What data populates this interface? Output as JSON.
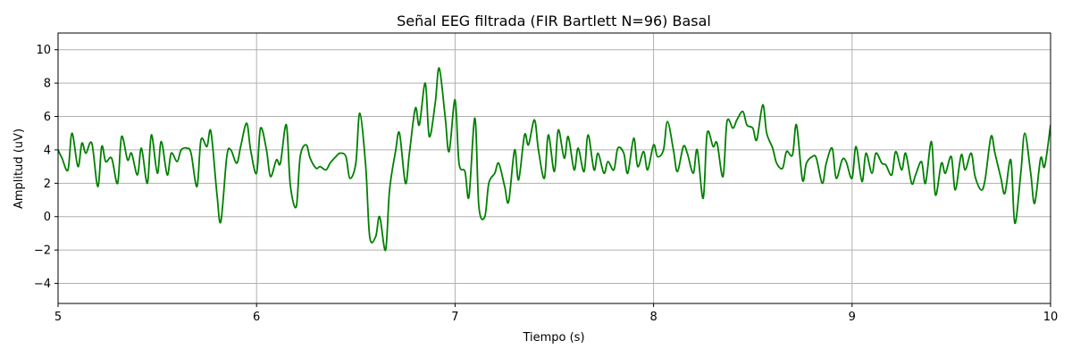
{
  "chart_data": {
    "type": "line",
    "title": "Señal EEG filtrada (FIR Bartlett N=96) Basal",
    "xlabel": "Tiempo (s)",
    "ylabel": "Amplitud (uV)",
    "xlim": [
      5,
      10
    ],
    "ylim": [
      -5.2,
      11
    ],
    "xticks": [
      5,
      6,
      7,
      8,
      9,
      10
    ],
    "yticks": [
      -4,
      -2,
      0,
      2,
      4,
      6,
      8,
      10
    ],
    "xtick_labels": [
      "5",
      "6",
      "7",
      "8",
      "9",
      "10"
    ],
    "ytick_labels": [
      "−4",
      "−2",
      "0",
      "2",
      "4",
      "6",
      "8",
      "10"
    ],
    "grid": true,
    "color": "#008000",
    "series": [
      {
        "x": [
          5.0,
          5.02,
          5.05,
          5.07,
          5.1,
          5.12,
          5.14,
          5.17,
          5.2,
          5.22,
          5.24,
          5.27,
          5.3,
          5.32,
          5.35,
          5.37,
          5.4,
          5.42,
          5.45,
          5.47,
          5.5,
          5.52,
          5.55,
          5.57,
          5.6,
          5.62,
          5.65,
          5.67,
          5.7,
          5.72,
          5.75,
          5.77,
          5.8,
          5.82,
          5.85,
          5.87,
          5.9,
          5.92,
          5.95,
          5.97,
          6.0,
          6.02,
          6.05,
          6.07,
          6.1,
          6.12,
          6.15,
          6.17,
          6.2,
          6.22,
          6.25,
          6.27,
          6.3,
          6.32,
          6.35,
          6.37,
          6.4,
          6.42,
          6.45,
          6.47,
          6.5,
          6.52,
          6.55,
          6.57,
          6.6,
          6.62,
          6.65,
          6.67,
          6.7,
          6.72,
          6.75,
          6.77,
          6.8,
          6.82,
          6.85,
          6.87,
          6.9,
          6.92,
          6.95,
          6.97,
          7.0,
          7.02,
          7.05,
          7.07,
          7.1,
          7.12,
          7.15,
          7.17,
          7.2,
          7.22,
          7.25,
          7.27,
          7.3,
          7.32,
          7.35,
          7.37,
          7.4,
          7.42,
          7.45,
          7.47,
          7.5,
          7.52,
          7.55,
          7.57,
          7.6,
          7.62,
          7.65,
          7.67,
          7.7,
          7.72,
          7.75,
          7.77,
          7.8,
          7.82,
          7.85,
          7.87,
          7.9,
          7.92,
          7.95,
          7.97,
          8.0,
          8.02,
          8.05,
          8.07,
          8.1,
          8.12,
          8.15,
          8.17,
          8.2,
          8.22,
          8.25,
          8.27,
          8.3,
          8.32,
          8.35,
          8.37,
          8.4,
          8.42,
          8.45,
          8.47,
          8.5,
          8.52,
          8.55,
          8.57,
          8.6,
          8.62,
          8.65,
          8.67,
          8.7,
          8.72,
          8.75,
          8.77,
          8.8,
          8.82,
          8.85,
          8.87,
          8.9,
          8.92,
          8.95,
          8.97,
          9.0,
          9.02,
          9.05,
          9.07,
          9.1,
          9.12,
          9.15,
          9.17,
          9.2,
          9.22,
          9.25,
          9.27,
          9.3,
          9.32,
          9.35,
          9.37,
          9.4,
          9.42,
          9.45,
          9.47,
          9.5,
          9.52,
          9.55,
          9.57,
          9.6,
          9.62,
          9.65,
          9.67,
          9.7,
          9.72,
          9.75,
          9.77,
          9.8,
          9.82,
          9.85,
          9.87,
          9.9,
          9.92,
          9.95,
          9.97,
          10.0
        ],
        "values": [
          4.0,
          3.5,
          2.8,
          5.0,
          3.0,
          4.4,
          3.8,
          4.4,
          1.8,
          4.2,
          3.3,
          3.5,
          2.0,
          4.8,
          3.4,
          3.8,
          2.5,
          4.1,
          2.0,
          4.9,
          2.6,
          4.5,
          2.5,
          3.8,
          3.3,
          4.0,
          4.1,
          3.8,
          1.8,
          4.6,
          4.2,
          5.1,
          1.4,
          -0.3,
          3.6,
          4.0,
          3.2,
          4.2,
          5.6,
          4.0,
          2.6,
          5.3,
          4.0,
          2.4,
          3.4,
          3.2,
          5.5,
          1.9,
          0.6,
          3.6,
          4.3,
          3.5,
          2.9,
          3.0,
          2.8,
          3.2,
          3.6,
          3.8,
          3.6,
          2.3,
          3.2,
          6.2,
          3.0,
          -1.2,
          -1.2,
          0.0,
          -2.0,
          1.6,
          3.9,
          5.0,
          2.0,
          3.8,
          6.5,
          5.5,
          8.0,
          4.8,
          6.8,
          8.9,
          6.0,
          3.9,
          7.0,
          3.2,
          2.7,
          1.2,
          5.9,
          0.6,
          0.0,
          2.0,
          2.6,
          3.2,
          1.8,
          0.9,
          4.0,
          2.2,
          4.9,
          4.3,
          5.8,
          4.0,
          2.3,
          4.9,
          2.7,
          5.2,
          3.5,
          4.8,
          2.8,
          4.1,
          2.7,
          4.9,
          2.8,
          3.8,
          2.6,
          3.3,
          2.8,
          4.1,
          3.8,
          2.6,
          4.7,
          3.0,
          3.9,
          2.8,
          4.3,
          3.6,
          4.0,
          5.7,
          4.0,
          2.7,
          4.2,
          3.8,
          2.6,
          4.0,
          1.1,
          5.0,
          4.2,
          4.4,
          2.4,
          5.7,
          5.3,
          5.8,
          6.3,
          5.5,
          5.3,
          4.6,
          6.7,
          5.0,
          4.1,
          3.2,
          2.9,
          3.9,
          3.7,
          5.5,
          2.2,
          3.2,
          3.6,
          3.5,
          2.0,
          3.2,
          4.1,
          2.3,
          3.4,
          3.3,
          2.3,
          4.2,
          2.1,
          3.8,
          2.6,
          3.8,
          3.2,
          3.1,
          2.5,
          3.9,
          2.8,
          3.8,
          2.0,
          2.5,
          3.3,
          2.0,
          4.5,
          1.3,
          3.2,
          2.6,
          3.6,
          1.6,
          3.7,
          2.8,
          3.8,
          2.4,
          1.6,
          2.2,
          4.8,
          3.8,
          2.3,
          1.4,
          3.4,
          -0.4,
          2.6,
          5.0,
          2.6,
          0.8,
          3.5,
          3.0,
          5.5
        ]
      }
    ]
  }
}
